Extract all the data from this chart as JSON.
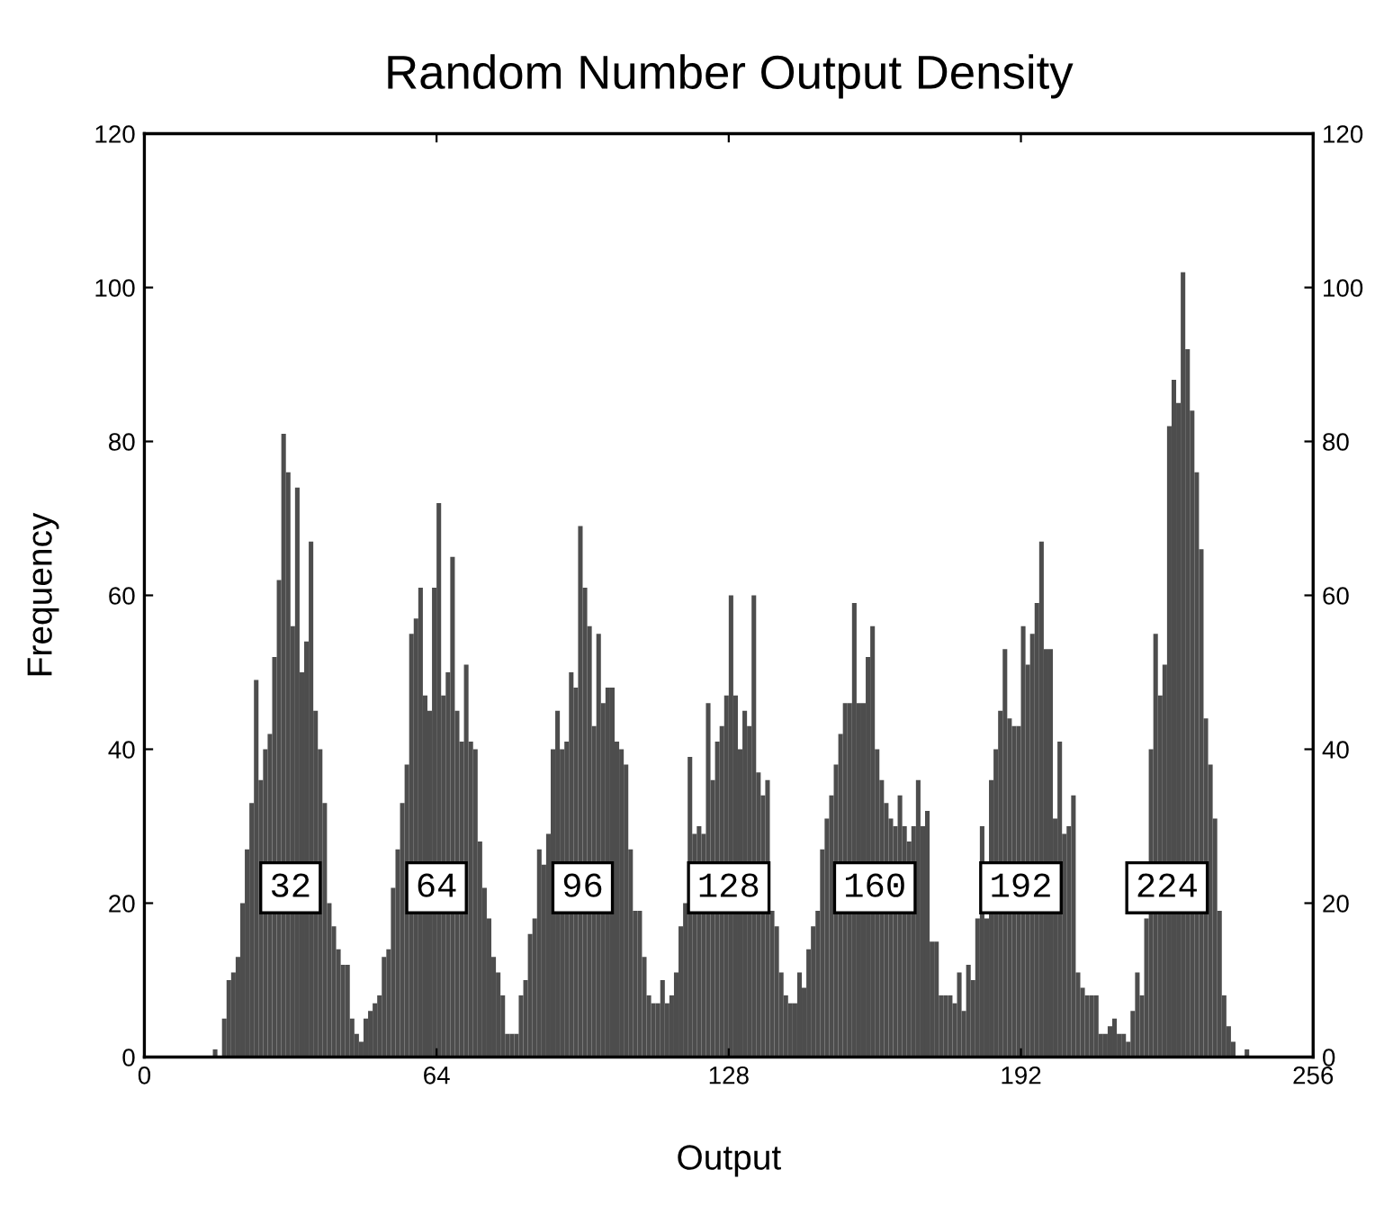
{
  "chart_data": {
    "type": "histogram",
    "title": "Random Number Output Density",
    "xlabel": "Output",
    "ylabel": "Frequency",
    "bins": [
      0,
      1,
      2,
      3,
      4,
      5,
      6,
      7,
      8,
      9,
      10,
      11,
      12,
      13,
      14,
      15,
      16,
      17,
      18,
      19,
      20,
      21,
      22,
      23,
      24,
      25,
      26,
      27,
      28,
      29,
      30,
      31,
      32,
      33,
      34,
      35,
      36,
      37,
      38,
      39,
      40,
      41,
      42,
      43,
      44,
      45,
      46,
      47,
      48,
      49,
      50,
      51,
      52,
      53,
      54,
      55,
      56,
      57,
      58,
      59,
      60,
      61,
      62,
      63,
      64,
      65,
      66,
      67,
      68,
      69,
      70,
      71,
      72,
      73,
      74,
      75,
      76,
      77,
      78,
      79,
      80,
      81,
      82,
      83,
      84,
      85,
      86,
      87,
      88,
      89,
      90,
      91,
      92,
      93,
      94,
      95,
      96,
      97,
      98,
      99,
      100,
      101,
      102,
      103,
      104,
      105,
      106,
      107,
      108,
      109,
      110,
      111,
      112,
      113,
      114,
      115,
      116,
      117,
      118,
      119,
      120,
      121,
      122,
      123,
      124,
      125,
      126,
      127,
      128,
      129,
      130,
      131,
      132,
      133,
      134,
      135,
      136,
      137,
      138,
      139,
      140,
      141,
      142,
      143,
      144,
      145,
      146,
      147,
      148,
      149,
      150,
      151,
      152,
      153,
      154,
      155,
      156,
      157,
      158,
      159,
      160,
      161,
      162,
      163,
      164,
      165,
      166,
      167,
      168,
      169,
      170,
      171,
      172,
      173,
      174,
      175,
      176,
      177,
      178,
      179,
      180,
      181,
      182,
      183,
      184,
      185,
      186,
      187,
      188,
      189,
      190,
      191,
      192,
      193,
      194,
      195,
      196,
      197,
      198,
      199,
      200,
      201,
      202,
      203,
      204,
      205,
      206,
      207,
      208,
      209,
      210,
      211,
      212,
      213,
      214,
      215,
      216,
      217,
      218,
      219,
      220,
      221,
      222,
      223,
      224,
      225,
      226,
      227,
      228,
      229,
      230,
      231,
      232,
      233,
      234,
      235,
      236,
      237,
      238,
      239,
      240,
      241,
      242,
      243,
      244,
      245,
      246,
      247,
      248,
      249,
      250,
      251,
      252,
      253,
      254,
      255,
      256
    ],
    "values": [
      0,
      0,
      0,
      0,
      0,
      0,
      0,
      0,
      0,
      0,
      0,
      0,
      0,
      0,
      0,
      1,
      0,
      5,
      10,
      11,
      13,
      20,
      27,
      33,
      49,
      36,
      40,
      42,
      52,
      62,
      81,
      76,
      56,
      74,
      50,
      54,
      67,
      45,
      40,
      33,
      20,
      17,
      14,
      12,
      12,
      5,
      3,
      2,
      5,
      6,
      7,
      8,
      13,
      14,
      22,
      27,
      33,
      38,
      55,
      57,
      61,
      47,
      45,
      61,
      72,
      47,
      50,
      65,
      45,
      41,
      51,
      41,
      40,
      28,
      22,
      18,
      13,
      11,
      8,
      3,
      3,
      3,
      8,
      10,
      16,
      18,
      27,
      25,
      29,
      40,
      45,
      40,
      41,
      50,
      48,
      69,
      61,
      56,
      43,
      55,
      46,
      48,
      48,
      41,
      40,
      38,
      27,
      19,
      19,
      13,
      8,
      7,
      7,
      10,
      7,
      8,
      11,
      17,
      20,
      39,
      29,
      30,
      29,
      46,
      36,
      41,
      43,
      47,
      60,
      47,
      40,
      45,
      43,
      60,
      37,
      34,
      36,
      19,
      17,
      11,
      8,
      7,
      7,
      11,
      9,
      14,
      17,
      19,
      27,
      31,
      34,
      38,
      42,
      46,
      46,
      59,
      46,
      46,
      52,
      56,
      40,
      36,
      33,
      31,
      30,
      34,
      30,
      28,
      30,
      36,
      30,
      32,
      15,
      15,
      8,
      8,
      8,
      7,
      11,
      6,
      12,
      10,
      18,
      30,
      18,
      36,
      40,
      45,
      53,
      44,
      43,
      43,
      56,
      51,
      55,
      59,
      67,
      53,
      53,
      31,
      41,
      29,
      30,
      34,
      11,
      9,
      8,
      8,
      8,
      3,
      3,
      4,
      5,
      3,
      3,
      2,
      6,
      11,
      8,
      18,
      40,
      55,
      47,
      51,
      82,
      88,
      85,
      102,
      92,
      84,
      76,
      66,
      44,
      38,
      31,
      19,
      8,
      4,
      2,
      0,
      0,
      1,
      0,
      0,
      0,
      0,
      0,
      0,
      0,
      0,
      0,
      0,
      0,
      0,
      0,
      0
    ],
    "color": "#4d4d4d",
    "xlim": [
      0,
      256
    ],
    "xticks": [
      0,
      64,
      128,
      192,
      256
    ],
    "ylim": [
      0,
      120
    ],
    "yticks": [
      0,
      20,
      40,
      60,
      80,
      100,
      120
    ],
    "y2lim": [
      0,
      120
    ],
    "y2ticks": [
      0,
      20,
      40,
      60,
      80,
      100,
      120
    ],
    "annotations": [
      {
        "text": "32",
        "x": 32,
        "y": 22
      },
      {
        "text": "64",
        "x": 64,
        "y": 22
      },
      {
        "text": "96",
        "x": 96,
        "y": 22
      },
      {
        "text": "128",
        "x": 128,
        "y": 22
      },
      {
        "text": "160",
        "x": 160,
        "y": 22
      },
      {
        "text": "192",
        "x": 192,
        "y": 22
      },
      {
        "text": "224",
        "x": 224,
        "y": 22
      }
    ]
  }
}
